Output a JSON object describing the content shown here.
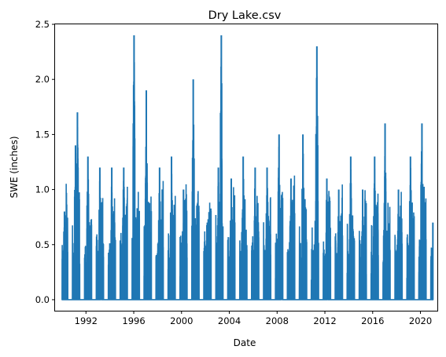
{
  "chart_data": {
    "type": "line",
    "title": "Dry Lake.csv",
    "xlabel": "Date",
    "ylabel": "SWE (inches)",
    "xlim": [
      "1989-06-01",
      "2021-06-01"
    ],
    "ylim": [
      -0.1,
      2.5
    ],
    "x_ticks": [
      "1992",
      "1996",
      "2000",
      "2004",
      "2008",
      "2012",
      "2016",
      "2020"
    ],
    "y_ticks": [
      "0.0",
      "0.5",
      "1.0",
      "1.5",
      "2.0",
      "2.5"
    ],
    "grid": false,
    "line_color": "#1f77b4",
    "series": [
      {
        "peaks": [
          {
            "date": "1990-03-15",
            "value": 0.8
          },
          {
            "date": "1991-02-15",
            "value": 1.4
          },
          {
            "date": "1991-04-15",
            "value": 1.7
          },
          {
            "date": "1992-03-01",
            "value": 1.3
          },
          {
            "date": "1993-03-01",
            "value": 1.2
          },
          {
            "date": "1994-03-01",
            "value": 1.2
          },
          {
            "date": "1995-03-01",
            "value": 1.2
          },
          {
            "date": "1996-01-10",
            "value": 2.4
          },
          {
            "date": "1997-01-20",
            "value": 1.9
          },
          {
            "date": "1998-03-01",
            "value": 1.2
          },
          {
            "date": "1999-03-01",
            "value": 1.3
          },
          {
            "date": "2000-03-01",
            "value": 1.0
          },
          {
            "date": "2000-12-25",
            "value": 2.0
          },
          {
            "date": "2002-03-01",
            "value": 0.7
          },
          {
            "date": "2003-02-01",
            "value": 1.2
          },
          {
            "date": "2003-05-01",
            "value": 2.4
          },
          {
            "date": "2004-03-01",
            "value": 1.1
          },
          {
            "date": "2005-03-01",
            "value": 1.3
          },
          {
            "date": "2006-03-01",
            "value": 1.2
          },
          {
            "date": "2007-03-01",
            "value": 1.2
          },
          {
            "date": "2008-03-01",
            "value": 1.5
          },
          {
            "date": "2009-03-01",
            "value": 1.1
          },
          {
            "date": "2010-03-01",
            "value": 1.5
          },
          {
            "date": "2011-05-01",
            "value": 2.3
          },
          {
            "date": "2012-03-01",
            "value": 1.1
          },
          {
            "date": "2013-03-01",
            "value": 1.0
          },
          {
            "date": "2014-03-01",
            "value": 1.3
          },
          {
            "date": "2015-03-01",
            "value": 1.0
          },
          {
            "date": "2016-03-01",
            "value": 1.3
          },
          {
            "date": "2017-01-15",
            "value": 1.6
          },
          {
            "date": "2018-03-01",
            "value": 1.0
          },
          {
            "date": "2019-03-01",
            "value": 1.3
          },
          {
            "date": "2020-02-15",
            "value": 1.6
          },
          {
            "date": "2021-01-15",
            "value": 0.7
          }
        ]
      }
    ]
  }
}
